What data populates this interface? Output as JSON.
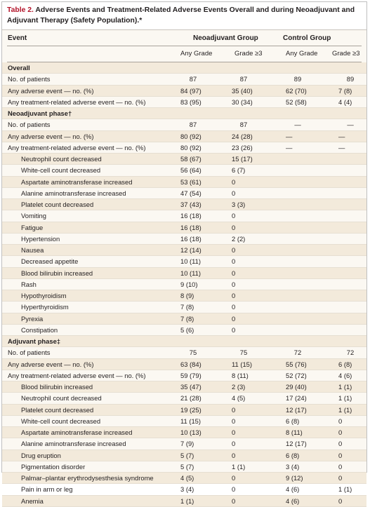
{
  "caption": {
    "label": "Table 2.",
    "text": " Adverse Events and Treatment-Related Adverse Events Overall and during Neoadjuvant and Adjuvant Therapy (Safety Population).*"
  },
  "header": {
    "event": "Event",
    "group1": "Neoadjuvant Group",
    "group2": "Control Group",
    "sub": [
      "Any Grade",
      "Grade ≥3",
      "Any Grade",
      "Grade ≥3"
    ]
  },
  "rows": [
    {
      "type": "section",
      "label": "Overall"
    },
    {
      "type": "row",
      "label": "No. of patients",
      "v": [
        "87",
        "87",
        "89",
        "89"
      ],
      "center": true
    },
    {
      "type": "row",
      "label": "Any adverse event — no. (%)",
      "v": [
        "84 (97)",
        "35 (40)",
        "62 (70)",
        "7 (8)"
      ]
    },
    {
      "type": "row",
      "label": "Any treatment-related adverse event — no. (%)",
      "v": [
        "83 (95)",
        "30 (34)",
        "52 (58)",
        "4 (4)"
      ]
    },
    {
      "type": "section",
      "label": "Neoadjuvant phase†"
    },
    {
      "type": "row",
      "label": "No. of patients",
      "v": [
        "87",
        "87",
        "—",
        "—"
      ],
      "center": true
    },
    {
      "type": "row",
      "label": "Any adverse event — no. (%)",
      "v": [
        "80 (92)",
        "24 (28)",
        "—",
        "—"
      ]
    },
    {
      "type": "row",
      "label": "Any treatment-related adverse event — no. (%)",
      "v": [
        "80 (92)",
        "23 (26)",
        "—",
        "—"
      ]
    },
    {
      "type": "ind",
      "label": "Neutrophil count decreased",
      "v": [
        "58 (67)",
        "15 (17)",
        "",
        ""
      ]
    },
    {
      "type": "ind",
      "label": "White-cell count decreased",
      "v": [
        "56 (64)",
        "6 (7)",
        "",
        ""
      ]
    },
    {
      "type": "ind",
      "label": "Aspartate aminotransferase increased",
      "v": [
        "53 (61)",
        "0",
        "",
        ""
      ]
    },
    {
      "type": "ind",
      "label": "Alanine aminotransferase increased",
      "v": [
        "47 (54)",
        "0",
        "",
        ""
      ]
    },
    {
      "type": "ind",
      "label": "Platelet count decreased",
      "v": [
        "37 (43)",
        "3 (3)",
        "",
        ""
      ]
    },
    {
      "type": "ind",
      "label": "Vomiting",
      "v": [
        "16 (18)",
        "0",
        "",
        ""
      ]
    },
    {
      "type": "ind",
      "label": "Fatigue",
      "v": [
        "16 (18)",
        "0",
        "",
        ""
      ]
    },
    {
      "type": "ind",
      "label": "Hypertension",
      "v": [
        "16 (18)",
        "2 (2)",
        "",
        ""
      ]
    },
    {
      "type": "ind",
      "label": "Nausea",
      "v": [
        "12 (14)",
        "0",
        "",
        ""
      ]
    },
    {
      "type": "ind",
      "label": "Decreased appetite",
      "v": [
        "10 (11)",
        "0",
        "",
        ""
      ]
    },
    {
      "type": "ind",
      "label": "Blood bilirubin increased",
      "v": [
        "10 (11)",
        "0",
        "",
        ""
      ]
    },
    {
      "type": "ind",
      "label": "Rash",
      "v": [
        "9 (10)",
        "0",
        "",
        ""
      ]
    },
    {
      "type": "ind",
      "label": "Hypothyroidism",
      "v": [
        "8 (9)",
        "0",
        "",
        ""
      ]
    },
    {
      "type": "ind",
      "label": "Hyperthyroidism",
      "v": [
        "7 (8)",
        "0",
        "",
        ""
      ]
    },
    {
      "type": "ind",
      "label": "Pyrexia",
      "v": [
        "7 (8)",
        "0",
        "",
        ""
      ]
    },
    {
      "type": "ind",
      "label": "Constipation",
      "v": [
        "5 (6)",
        "0",
        "",
        ""
      ]
    },
    {
      "type": "section",
      "label": "Adjuvant phase‡"
    },
    {
      "type": "row",
      "label": "No. of patients",
      "v": [
        "75",
        "75",
        "72",
        "72"
      ],
      "center": true
    },
    {
      "type": "row",
      "label": "Any adverse event — no. (%)",
      "v": [
        "63 (84)",
        "11 (15)",
        "55 (76)",
        "6 (8)"
      ]
    },
    {
      "type": "row",
      "label": "Any treatment-related adverse event — no. (%)",
      "v": [
        "59 (79)",
        "8 (11)",
        "52 (72)",
        "4 (6)"
      ]
    },
    {
      "type": "ind",
      "label": "Blood bilirubin increased",
      "v": [
        "35 (47)",
        "2 (3)",
        "29 (40)",
        "1 (1)"
      ]
    },
    {
      "type": "ind",
      "label": "Neutrophil count decreased",
      "v": [
        "21 (28)",
        "4 (5)",
        "17 (24)",
        "1 (1)"
      ]
    },
    {
      "type": "ind",
      "label": "Platelet count decreased",
      "v": [
        "19 (25)",
        "0",
        "12 (17)",
        "1 (1)"
      ]
    },
    {
      "type": "ind",
      "label": "White-cell count decreased",
      "v": [
        "11 (15)",
        "0",
        "6 (8)",
        "0"
      ]
    },
    {
      "type": "ind",
      "label": "Aspartate aminotransferase increased",
      "v": [
        "10 (13)",
        "0",
        "8 (11)",
        "0"
      ]
    },
    {
      "type": "ind",
      "label": "Alanine aminotransferase increased",
      "v": [
        "7 (9)",
        "0",
        "12 (17)",
        "0"
      ]
    },
    {
      "type": "ind",
      "label": "Drug eruption",
      "v": [
        "5 (7)",
        "0",
        "6 (8)",
        "0"
      ]
    },
    {
      "type": "ind",
      "label": "Pigmentation disorder",
      "v": [
        "5 (7)",
        "1 (1)",
        "3 (4)",
        "0"
      ]
    },
    {
      "type": "ind",
      "label": "Palmar–plantar erythrodysesthesia syndrome",
      "v": [
        "4 (5)",
        "0",
        "9 (12)",
        "0"
      ]
    },
    {
      "type": "ind",
      "label": "Pain in arm or leg",
      "v": [
        "3 (4)",
        "0",
        "4 (6)",
        "1 (1)"
      ]
    },
    {
      "type": "ind",
      "label": "Anemia",
      "v": [
        "1 (1)",
        "0",
        "4 (6)",
        "0"
      ]
    }
  ]
}
